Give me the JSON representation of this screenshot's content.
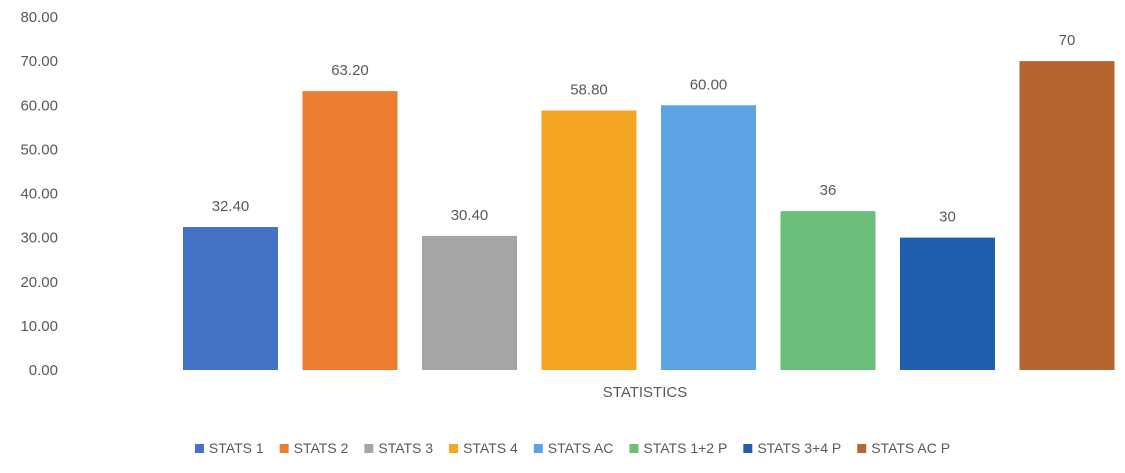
{
  "chart_data": {
    "type": "bar",
    "categories": [
      "STATISTICS"
    ],
    "ylim": [
      0,
      80
    ],
    "yticks": [
      0,
      10,
      20,
      30,
      40,
      50,
      60,
      70,
      80
    ],
    "ytick_labels": [
      "0.00",
      "10.00",
      "20.00",
      "30.00",
      "40.00",
      "50.00",
      "60.00",
      "70.00",
      "80.00"
    ],
    "grid": false,
    "legend_position": "bottom",
    "series": [
      {
        "name": "STATS 1",
        "values": [
          32.4
        ],
        "label": "32.40",
        "color": "#4472C4"
      },
      {
        "name": "STATS 2",
        "values": [
          63.2
        ],
        "label": "63.20",
        "color": "#ED7D31"
      },
      {
        "name": "STATS 3",
        "values": [
          30.4
        ],
        "label": "30.40",
        "color": "#A5A5A5"
      },
      {
        "name": "STATS 4",
        "values": [
          58.8
        ],
        "label": "58.80",
        "color": "#F4A521"
      },
      {
        "name": "STATS AC",
        "values": [
          60.0
        ],
        "label": "60.00",
        "color": "#5BA3E3"
      },
      {
        "name": "STATS 1+2 P",
        "values": [
          36
        ],
        "label": "36",
        "color": "#6CBF7A"
      },
      {
        "name": "STATS 3+4 P",
        "values": [
          30
        ],
        "label": "30",
        "color": "#1F5FAE"
      },
      {
        "name": "STATS AC P",
        "values": [
          70
        ],
        "label": "70",
        "color": "#B5652E"
      }
    ]
  }
}
